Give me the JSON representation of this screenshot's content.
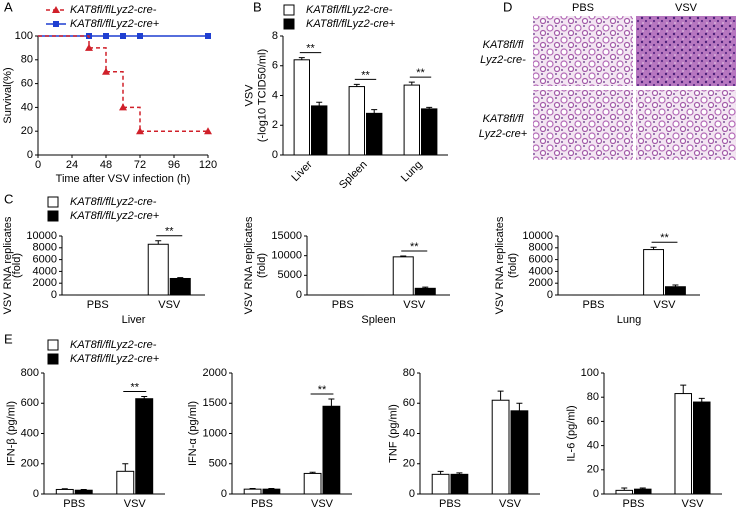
{
  "panel_labels": [
    "A",
    "B",
    "C",
    "D",
    "E"
  ],
  "histology": {
    "columns": [
      "PBS",
      "VSV"
    ],
    "rows": [
      [
        "KAT8fl/fl",
        "Lyz2-cre-"
      ],
      [
        "KAT8fl/fl",
        "Lyz2-cre+"
      ]
    ]
  },
  "chart_data": [
    {
      "type": "line",
      "step": true,
      "x": [
        0,
        36,
        48,
        60,
        72,
        120
      ],
      "xlabel": "Time after VSV infection (h)",
      "ylabel": [
        "Survival(%)"
      ],
      "xlim": [
        0,
        120
      ],
      "xticks": [
        0,
        24,
        48,
        72,
        96,
        120
      ],
      "ylim": [
        0,
        100
      ],
      "yticks": [
        0,
        20,
        40,
        60,
        80,
        100
      ],
      "series": [
        {
          "name": "KAT8fl/flLyz2-cre-",
          "color": "#d0202a",
          "dash": true,
          "marker": "triangle",
          "values": [
            100,
            90,
            70,
            40,
            20,
            20
          ]
        },
        {
          "name": "KAT8fl/flLyz2-cre+",
          "color": "#1f3fd1",
          "dash": false,
          "marker": "square",
          "values": [
            100,
            100,
            100,
            100,
            100,
            100
          ]
        }
      ]
    },
    {
      "type": "bar",
      "categories": [
        "Liver",
        "Spleen",
        "Lung"
      ],
      "ylabel": [
        "VSV",
        "(-log10 TCID50/ml)"
      ],
      "ylim": [
        0,
        8
      ],
      "yticks": [
        0,
        2,
        4,
        6,
        8
      ],
      "significance": [
        "**",
        "**",
        "**"
      ],
      "series": [
        {
          "name": "KAT8fl/flLyz2-cre-",
          "color": "#ffffff",
          "values": [
            6.4,
            4.6,
            4.7
          ],
          "errors": [
            0.15,
            0.15,
            0.2
          ]
        },
        {
          "name": "KAT8fl/flLyz2-cre+",
          "color": "#000000",
          "values": [
            3.3,
            2.8,
            3.1
          ],
          "errors": [
            0.25,
            0.25,
            0.1
          ]
        }
      ]
    },
    {
      "type": "bar",
      "categories": [
        "PBS",
        "VSV"
      ],
      "xlabel": "Liver",
      "ylabel": [
        "VSV RNA replicates",
        "(fold)"
      ],
      "ylim": [
        0,
        10000
      ],
      "yticks": [
        0,
        2000,
        4000,
        6000,
        8000,
        10000
      ],
      "significance": [
        null,
        "**"
      ],
      "series": [
        {
          "name": "KAT8fl/flLyz2-cre-",
          "color": "#ffffff",
          "values": [
            0,
            8600
          ],
          "errors": [
            null,
            600
          ]
        },
        {
          "name": "KAT8fl/flLyz2-cre+",
          "color": "#000000",
          "values": [
            0,
            2800
          ],
          "errors": [
            null,
            150
          ]
        }
      ]
    },
    {
      "type": "bar",
      "categories": [
        "PBS",
        "VSV"
      ],
      "xlabel": "Spleen",
      "ylabel": [
        "VSV RNA replicates",
        "(fold)"
      ],
      "ylim": [
        0,
        15000
      ],
      "yticks": [
        0,
        5000,
        10000,
        15000
      ],
      "significance": [
        null,
        "**"
      ],
      "series": [
        {
          "color": "#ffffff",
          "values": [
            0,
            9700
          ],
          "errors": [
            null,
            200
          ]
        },
        {
          "color": "#000000",
          "values": [
            0,
            1700
          ],
          "errors": [
            null,
            300
          ]
        }
      ]
    },
    {
      "type": "bar",
      "categories": [
        "PBS",
        "VSV"
      ],
      "xlabel": "Lung",
      "ylabel": [
        "VSV RNA replicates",
        "(fold)"
      ],
      "ylim": [
        0,
        10000
      ],
      "yticks": [
        0,
        2000,
        4000,
        6000,
        8000,
        10000
      ],
      "significance": [
        null,
        "**"
      ],
      "series": [
        {
          "color": "#ffffff",
          "values": [
            0,
            7700
          ],
          "errors": [
            null,
            400
          ]
        },
        {
          "color": "#000000",
          "values": [
            0,
            1400
          ],
          "errors": [
            null,
            300
          ]
        }
      ]
    },
    {
      "type": "bar",
      "categories": [
        "PBS",
        "VSV"
      ],
      "ylabel": [
        "IFN-β (pg/ml)"
      ],
      "ylim": [
        0,
        800
      ],
      "yticks": [
        0,
        200,
        400,
        600,
        800
      ],
      "significance": [
        null,
        "**"
      ],
      "series": [
        {
          "name": "KAT8fl/flLyz2-cre-",
          "color": "#ffffff",
          "values": [
            30,
            150
          ],
          "errors": [
            5,
            50
          ]
        },
        {
          "name": "KAT8fl/flLyz2-cre+",
          "color": "#000000",
          "values": [
            25,
            630
          ],
          "errors": [
            5,
            15
          ]
        }
      ]
    },
    {
      "type": "bar",
      "categories": [
        "PBS",
        "VSV"
      ],
      "ylabel": [
        "IFN-α (pg/ml)"
      ],
      "ylim": [
        0,
        2000
      ],
      "yticks": [
        0,
        500,
        1000,
        1500,
        2000
      ],
      "significance": [
        null,
        "**"
      ],
      "series": [
        {
          "color": "#ffffff",
          "values": [
            80,
            340
          ],
          "errors": [
            10,
            20
          ]
        },
        {
          "color": "#000000",
          "values": [
            80,
            1450
          ],
          "errors": [
            10,
            120
          ]
        }
      ]
    },
    {
      "type": "bar",
      "categories": [
        "PBS",
        "VSV"
      ],
      "ylabel": [
        "TNF (pg/ml)"
      ],
      "ylim": [
        0,
        80
      ],
      "yticks": [
        0,
        20,
        40,
        60,
        80
      ],
      "significance": [
        null,
        null
      ],
      "series": [
        {
          "color": "#ffffff",
          "values": [
            13,
            62
          ],
          "errors": [
            2,
            6
          ]
        },
        {
          "color": "#000000",
          "values": [
            13,
            55
          ],
          "errors": [
            1,
            5
          ]
        }
      ]
    },
    {
      "type": "bar",
      "categories": [
        "PBS",
        "VSV"
      ],
      "ylabel": [
        "IL-6 (pg/ml)"
      ],
      "ylim": [
        0,
        100
      ],
      "yticks": [
        0,
        20,
        40,
        60,
        80,
        100
      ],
      "significance": [
        null,
        null
      ],
      "series": [
        {
          "color": "#ffffff",
          "values": [
            3,
            83
          ],
          "errors": [
            2,
            7
          ]
        },
        {
          "color": "#000000",
          "values": [
            4,
            76
          ],
          "errors": [
            1,
            3
          ]
        }
      ]
    }
  ]
}
